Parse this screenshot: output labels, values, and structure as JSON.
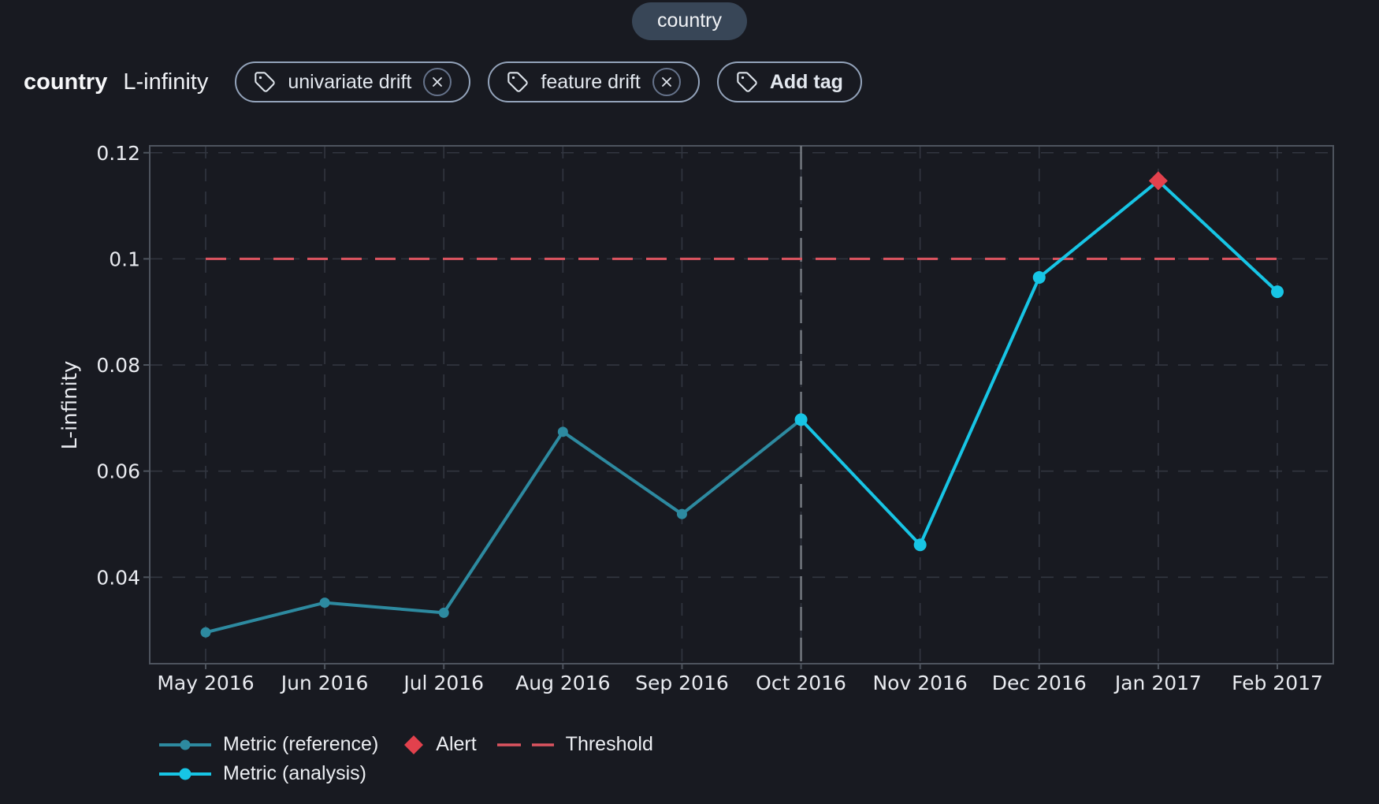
{
  "feature_pill": {
    "label": "country"
  },
  "header": {
    "feature_name": "country",
    "metric_name": "L-infinity",
    "tags": [
      {
        "label": "univariate drift"
      },
      {
        "label": "feature drift"
      }
    ],
    "add_tag": {
      "label": "Add tag"
    }
  },
  "chart_data": {
    "type": "line",
    "title": "",
    "xlabel": "",
    "ylabel": "L-infinity",
    "x_categories": [
      "May 2016",
      "Jun 2016",
      "Jul 2016",
      "Aug 2016",
      "Sep 2016",
      "Oct 2016",
      "Nov 2016",
      "Dec 2016",
      "Jan 2017",
      "Feb 2017"
    ],
    "y_tick_labels": [
      "0.04",
      "0.06",
      "0.08",
      "0.1",
      "0.12"
    ],
    "y_tick_values": [
      0.04,
      0.06,
      0.08,
      0.1,
      0.12
    ],
    "ylim": [
      0.0237,
      0.1213
    ],
    "grid": "dashed",
    "legend_position": "bottom-left",
    "series": [
      {
        "name": "Metric (reference)",
        "color": "#2d8aa0",
        "start_index": 0,
        "values": [
          0.0296,
          0.0352,
          0.0333,
          0.0674,
          0.0519,
          0.0697
        ]
      },
      {
        "name": "Metric (analysis)",
        "color": "#17c5e5",
        "start_index": 5,
        "values": [
          0.0697,
          0.0461,
          0.0965,
          0.1147,
          0.0938
        ]
      }
    ],
    "threshold": {
      "label": "Threshold",
      "value": 0.1,
      "color": "#dc5460",
      "span_indices": [
        0,
        9
      ]
    },
    "alert": {
      "label": "Alert",
      "x_index": 8,
      "value": 0.1147,
      "color": "#e2414d"
    },
    "divider_x_index": 5,
    "colors": {
      "background": "#181a21",
      "plot_border": "#4e545e",
      "gridline": "#323640",
      "divider": "#73787f",
      "tick_text": "#e9ebf0"
    }
  }
}
